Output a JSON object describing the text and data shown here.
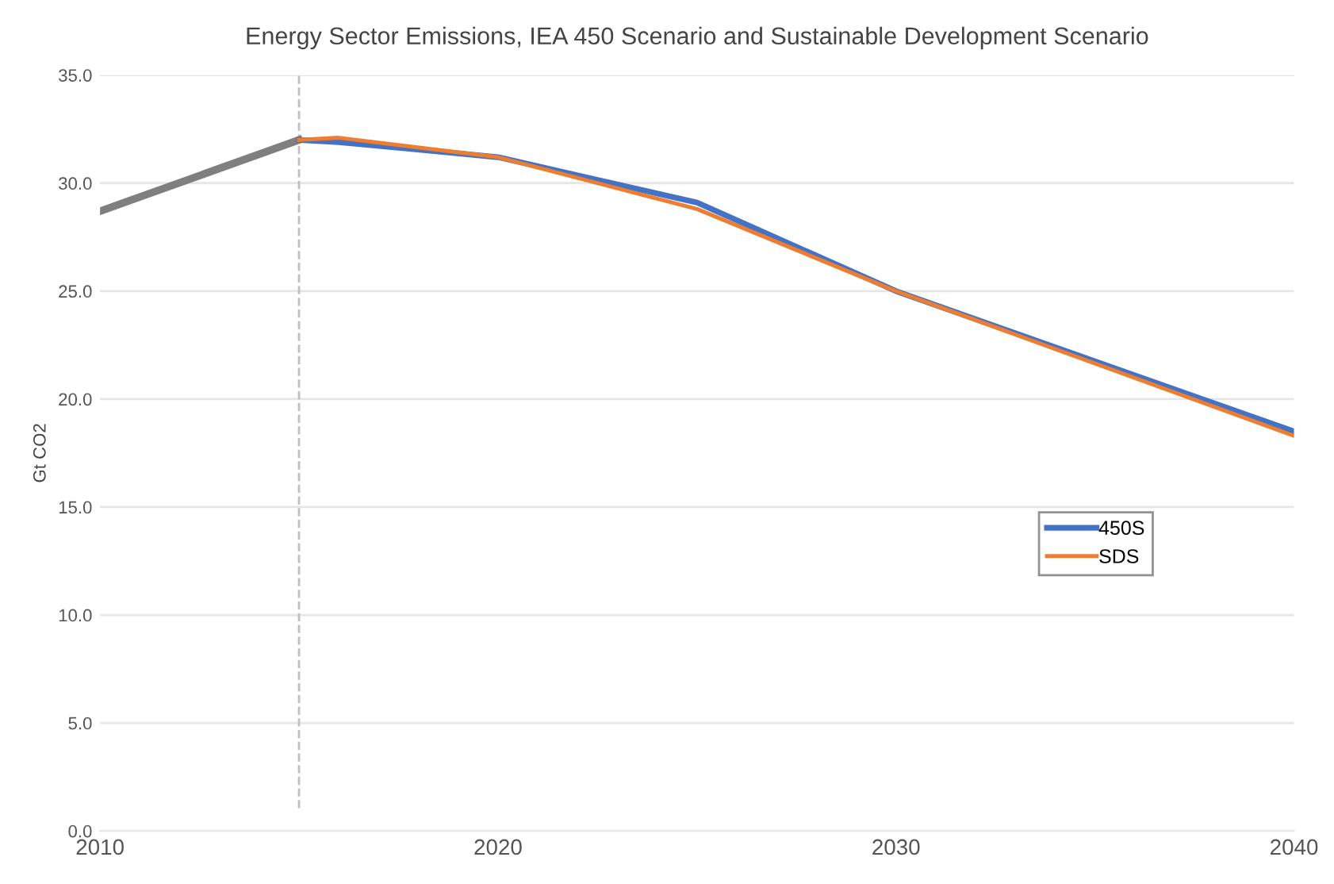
{
  "chart_data": {
    "type": "line",
    "title": "Energy Sector Emissions, IEA 450 Scenario and Sustainable Development Scenario",
    "ylabel": "Gt CO2",
    "series": [
      {
        "color": "#7f7f7f",
        "x": [
          2010,
          2015
        ],
        "values": [
          28.7,
          32.0
        ]
      },
      {
        "name": "450S",
        "color": "#4472c4",
        "x": [
          2015,
          2016,
          2020,
          2025,
          2030,
          2040
        ],
        "values": [
          32.0,
          31.9,
          31.2,
          29.1,
          25.0,
          18.5
        ]
      },
      {
        "name": "SDS",
        "color": "#ed7d31",
        "x": [
          2015,
          2016,
          2020,
          2025,
          2030,
          2040
        ],
        "values": [
          32.0,
          32.1,
          31.2,
          28.8,
          25.0,
          18.3
        ]
      }
    ],
    "xlim": [
      2010,
      2040
    ],
    "xticks": [
      2010,
      2020,
      2030,
      2040
    ],
    "ylim": [
      0,
      35
    ],
    "yticks": [
      {
        "value": 0,
        "label": "0.0"
      },
      {
        "value": 5,
        "label": "5.0"
      },
      {
        "value": 10,
        "label": "10.0"
      },
      {
        "value": 15,
        "label": "15.0"
      },
      {
        "value": 20,
        "label": "20.0"
      },
      {
        "value": 25,
        "label": "25.0"
      },
      {
        "value": 30,
        "label": "30.0"
      },
      {
        "value": 35,
        "label": "35.0"
      }
    ],
    "ref_lines": [
      {
        "axis": "x",
        "value": 2015,
        "color": "#bfbfbf",
        "line_style": "dashed"
      }
    ],
    "grid": "y",
    "legend": "right",
    "marker": "none",
    "line_style": "solid"
  }
}
